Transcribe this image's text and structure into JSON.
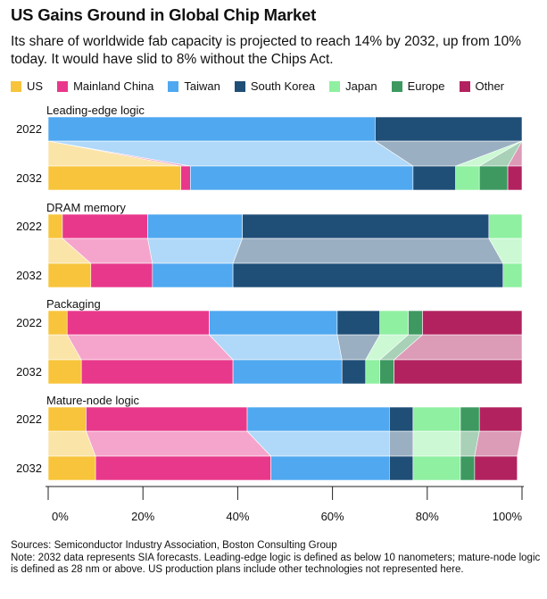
{
  "title": "US Gains Ground in Global Chip Market",
  "subtitle": "Its share of worldwide fab capacity is projected to reach 14% by 2032, up from 10% today. It would have slid to 8% without the Chips Act.",
  "colors": {
    "US": "#f7c43b",
    "Mainland China": "#e8388b",
    "Taiwan": "#4fa8f0",
    "South Korea": "#1f4e77",
    "Japan": "#8ef0a0",
    "Europe": "#3d9960",
    "Other": "#b2225f"
  },
  "source": {
    "line1": "Sources: Semiconductor Industry Association, Boston Consulting Group",
    "line2": "Note: 2032 data represents SIA forecasts. Leading-edge logic is defined as below 10 nanometers; mature-node logic is defined as 28 nm or above. US production plans include other technologies not represented here."
  },
  "chart_data": {
    "type": "bar",
    "orientation": "horizontal-stacked-100",
    "series_names": [
      "US",
      "Mainland China",
      "Taiwan",
      "South Korea",
      "Japan",
      "Europe",
      "Other"
    ],
    "xlim": [
      0,
      100
    ],
    "x_ticks": [
      "0%",
      "20%",
      "40%",
      "60%",
      "80%",
      "100%"
    ],
    "x_tick_values": [
      0,
      20,
      40,
      60,
      80,
      100
    ],
    "panels": [
      {
        "label": "Leading-edge logic",
        "rows": [
          {
            "year": "2022",
            "values": [
              0,
              0,
              69,
              31,
              0,
              0,
              0
            ]
          },
          {
            "year": "2032",
            "values": [
              28,
              2,
              47,
              9,
              5,
              6,
              3
            ]
          }
        ]
      },
      {
        "label": "DRAM memory",
        "rows": [
          {
            "year": "2022",
            "values": [
              3,
              18,
              20,
              52,
              7,
              0,
              0
            ]
          },
          {
            "year": "2032",
            "values": [
              9,
              13,
              17,
              57,
              4,
              0,
              0
            ]
          }
        ]
      },
      {
        "label": "Packaging",
        "rows": [
          {
            "year": "2022",
            "values": [
              4,
              30,
              27,
              9,
              6,
              3,
              21
            ]
          },
          {
            "year": "2032",
            "values": [
              7,
              32,
              23,
              5,
              3,
              3,
              27
            ]
          }
        ]
      },
      {
        "label": "Mature-node logic",
        "rows": [
          {
            "year": "2022",
            "values": [
              8,
              34,
              30,
              5,
              10,
              4,
              9
            ]
          },
          {
            "year": "2032",
            "values": [
              10,
              37,
              25,
              5,
              10,
              3,
              9
            ]
          }
        ]
      }
    ]
  }
}
